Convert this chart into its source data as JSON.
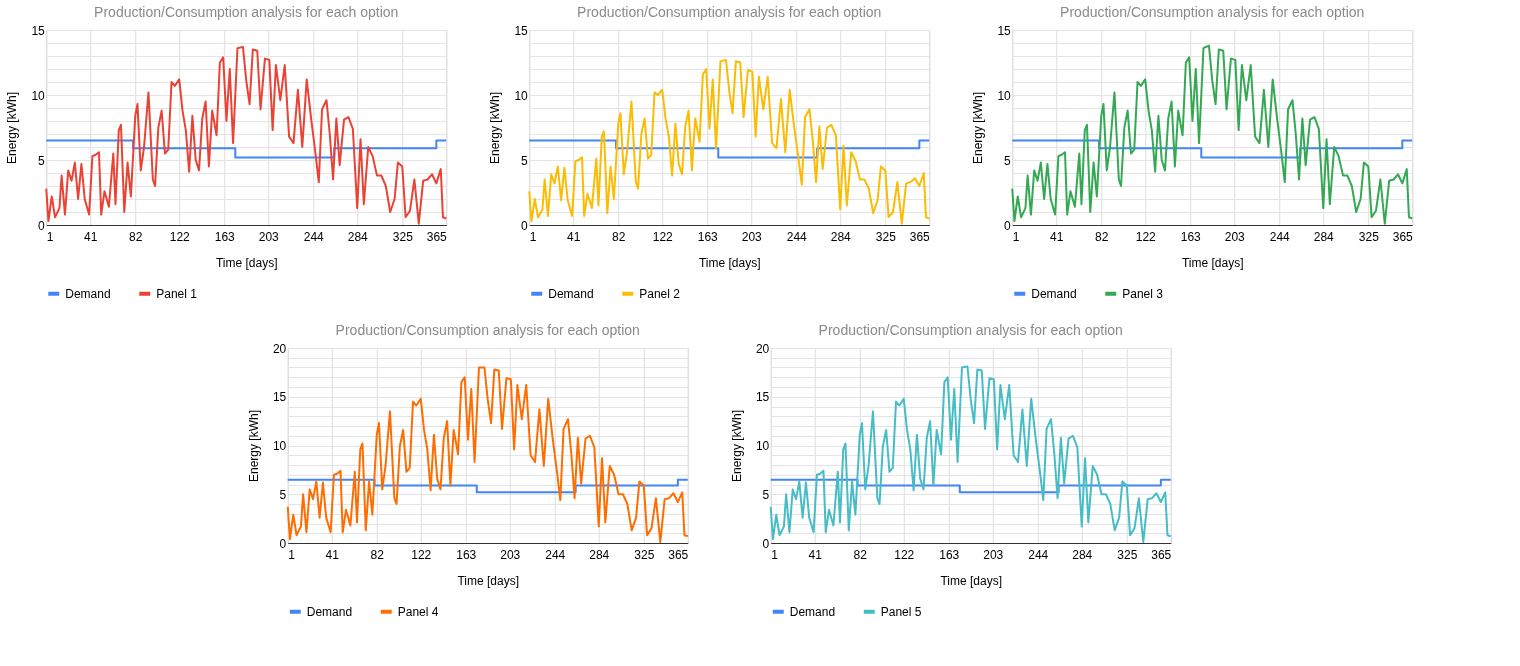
{
  "chart_data": [
    {
      "type": "line",
      "title": "Production/Consumption analysis for each option",
      "xlabel": "Time [days]",
      "ylabel": "Energy [kWh]",
      "xlim": [
        1,
        365
      ],
      "xticks": [
        1,
        41,
        82,
        122,
        163,
        203,
        244,
        284,
        325,
        365
      ],
      "ylim": [
        0,
        15
      ],
      "yticks": [
        0,
        {
          "value": 1,
          "label": null
        },
        {
          "value": 2,
          "label": null
        },
        {
          "value": 3,
          "label": null
        },
        {
          "value": 4,
          "label": null
        },
        5,
        {
          "value": 6,
          "label": null
        },
        {
          "value": 7,
          "label": null
        },
        {
          "value": 8,
          "label": null
        },
        {
          "value": 9,
          "label": null
        },
        10,
        {
          "value": 11,
          "label": null
        },
        {
          "value": 12,
          "label": null
        },
        {
          "value": 13,
          "label": null
        },
        {
          "value": 14,
          "label": null
        },
        15
      ],
      "grid": true,
      "legend": "bottom",
      "series": [
        {
          "name": "Demand",
          "color": "#4285f4",
          "x": [
            1,
            80,
            80,
            173,
            173,
            263,
            263,
            356,
            356,
            365
          ],
          "values": [
            6.5,
            6.5,
            5.9,
            5.9,
            5.2,
            5.2,
            5.9,
            5.9,
            6.5,
            6.5
          ]
        },
        {
          "name": "Panel 1",
          "color": "#ea4335",
          "x": [
            1,
            3,
            6,
            9,
            13,
            15,
            18,
            21,
            24,
            27,
            30,
            33,
            36,
            40,
            43,
            46,
            49,
            51,
            54,
            58,
            62,
            64,
            67,
            69,
            72,
            75,
            78,
            82,
            84,
            87,
            90,
            94,
            98,
            100,
            103,
            106,
            109,
            112,
            115,
            118,
            122,
            125,
            128,
            131,
            134,
            137,
            140,
            143,
            146,
            149,
            152,
            156,
            159,
            162,
            165,
            168,
            171,
            175,
            180,
            183,
            186,
            189,
            193,
            196,
            200,
            204,
            207,
            210,
            214,
            218,
            222,
            226,
            230,
            234,
            238,
            242,
            246,
            249,
            252,
            256,
            259,
            262,
            265,
            268,
            272,
            276,
            280,
            284,
            287,
            290,
            294,
            298,
            302,
            306,
            310,
            314,
            318,
            321,
            325,
            328,
            332,
            336,
            340,
            344,
            348,
            352,
            356,
            360,
            362,
            365
          ],
          "values": [
            2.8,
            0.3,
            2.2,
            0.6,
            1.3,
            3.8,
            0.8,
            4.2,
            3.4,
            4.8,
            2.0,
            4.7,
            2.0,
            0.8,
            5.3,
            5.4,
            5.6,
            0.8,
            2.6,
            1.4,
            5.5,
            1.6,
            7.3,
            7.7,
            1.0,
            4.8,
            2.2,
            8.4,
            9.3,
            4.2,
            6.0,
            10.2,
            3.5,
            3.0,
            7.5,
            8.8,
            5.5,
            5.8,
            11.0,
            10.7,
            11.2,
            8.8,
            7.3,
            4.1,
            8.4,
            5.0,
            4.2,
            8.2,
            9.5,
            4.5,
            8.8,
            6.9,
            12.5,
            12.9,
            8.0,
            12.0,
            6.3,
            13.6,
            13.7,
            11.1,
            9.3,
            13.5,
            13.4,
            8.9,
            12.8,
            12.7,
            7.3,
            12.3,
            9.6,
            12.3,
            6.8,
            6.3,
            10.4,
            6.0,
            11.2,
            8.2,
            5.5,
            3.3,
            8.9,
            9.6,
            7.0,
            3.5,
            8.2,
            4.6,
            8.1,
            8.3,
            7.4,
            1.3,
            6.6,
            1.6,
            6.0,
            5.3,
            3.8,
            3.8,
            3.0,
            1.0,
            2.0,
            4.8,
            4.5,
            0.6,
            1.1,
            3.5,
            0.1,
            3.4,
            3.5,
            3.9,
            3.2,
            4.3,
            0.6,
            0.5
          ]
        }
      ]
    },
    {
      "type": "line",
      "title": "Production/Consumption analysis for each option",
      "xlabel": "Time [days]",
      "ylabel": "Energy [kWh]",
      "xlim": [
        1,
        365
      ],
      "xticks": [
        1,
        41,
        82,
        122,
        163,
        203,
        244,
        284,
        325,
        365
      ],
      "ylim": [
        0,
        15
      ],
      "yticks": [
        0,
        {
          "value": 1,
          "label": null
        },
        {
          "value": 2,
          "label": null
        },
        {
          "value": 3,
          "label": null
        },
        {
          "value": 4,
          "label": null
        },
        5,
        {
          "value": 6,
          "label": null
        },
        {
          "value": 7,
          "label": null
        },
        {
          "value": 8,
          "label": null
        },
        {
          "value": 9,
          "label": null
        },
        10,
        {
          "value": 11,
          "label": null
        },
        {
          "value": 12,
          "label": null
        },
        {
          "value": 13,
          "label": null
        },
        {
          "value": 14,
          "label": null
        },
        15
      ],
      "grid": true,
      "legend": "bottom",
      "series": [
        {
          "name": "Demand",
          "color": "#4285f4",
          "x": [
            1,
            80,
            80,
            173,
            173,
            263,
            263,
            356,
            356,
            365
          ],
          "values": [
            6.5,
            6.5,
            5.9,
            5.9,
            5.2,
            5.2,
            5.9,
            5.9,
            6.5,
            6.5
          ]
        },
        {
          "name": "Panel 2",
          "color": "#fbbc04",
          "x": [
            1,
            3,
            6,
            9,
            13,
            15,
            18,
            21,
            24,
            27,
            30,
            33,
            36,
            40,
            43,
            46,
            49,
            51,
            54,
            58,
            62,
            64,
            67,
            69,
            72,
            75,
            78,
            82,
            84,
            87,
            90,
            94,
            98,
            100,
            103,
            106,
            109,
            112,
            115,
            118,
            122,
            125,
            128,
            131,
            134,
            137,
            140,
            143,
            146,
            149,
            152,
            156,
            159,
            162,
            165,
            168,
            171,
            175,
            180,
            183,
            186,
            189,
            193,
            196,
            200,
            204,
            207,
            210,
            214,
            218,
            222,
            226,
            230,
            234,
            238,
            242,
            246,
            249,
            252,
            256,
            259,
            262,
            265,
            268,
            272,
            276,
            280,
            284,
            287,
            290,
            294,
            298,
            302,
            306,
            310,
            314,
            318,
            321,
            325,
            328,
            332,
            336,
            340,
            344,
            348,
            352,
            356,
            360,
            362,
            365
          ],
          "values": [
            2.6,
            0.3,
            2.0,
            0.6,
            1.2,
            3.5,
            0.7,
            3.9,
            3.2,
            4.5,
            1.9,
            4.4,
            1.9,
            0.7,
            4.9,
            5.0,
            5.2,
            0.7,
            2.4,
            1.3,
            5.1,
            1.5,
            6.8,
            7.2,
            0.9,
            4.5,
            2.0,
            7.8,
            8.6,
            3.9,
            5.6,
            9.5,
            3.3,
            2.8,
            7.0,
            8.2,
            5.1,
            5.4,
            10.2,
            10.0,
            10.4,
            8.2,
            6.8,
            3.8,
            7.8,
            4.7,
            3.9,
            7.6,
            8.8,
            4.2,
            8.2,
            6.4,
            11.6,
            12.0,
            7.4,
            11.2,
            5.9,
            12.6,
            12.7,
            10.3,
            8.6,
            12.6,
            12.5,
            8.3,
            11.9,
            11.8,
            6.8,
            11.4,
            8.9,
            11.4,
            6.3,
            5.9,
            9.7,
            5.6,
            10.4,
            7.6,
            5.1,
            3.1,
            8.3,
            8.9,
            6.5,
            3.3,
            7.6,
            4.3,
            7.5,
            7.7,
            6.9,
            1.2,
            6.1,
            1.5,
            5.6,
            4.9,
            3.5,
            3.5,
            2.8,
            0.9,
            1.9,
            4.5,
            4.2,
            0.6,
            1.0,
            3.3,
            0.1,
            3.2,
            3.3,
            3.6,
            3.0,
            4.0,
            0.6,
            0.5
          ]
        }
      ]
    },
    {
      "type": "line",
      "title": "Production/Consumption analysis for each option",
      "xlabel": "Time [days]",
      "ylabel": "Energy [kWh]",
      "xlim": [
        1,
        365
      ],
      "xticks": [
        1,
        41,
        82,
        122,
        163,
        203,
        244,
        284,
        325,
        365
      ],
      "ylim": [
        0,
        15
      ],
      "yticks": [
        0,
        {
          "value": 1,
          "label": null
        },
        {
          "value": 2,
          "label": null
        },
        {
          "value": 3,
          "label": null
        },
        {
          "value": 4,
          "label": null
        },
        5,
        {
          "value": 6,
          "label": null
        },
        {
          "value": 7,
          "label": null
        },
        {
          "value": 8,
          "label": null
        },
        {
          "value": 9,
          "label": null
        },
        10,
        {
          "value": 11,
          "label": null
        },
        {
          "value": 12,
          "label": null
        },
        {
          "value": 13,
          "label": null
        },
        {
          "value": 14,
          "label": null
        },
        15
      ],
      "grid": true,
      "legend": "bottom",
      "series": [
        {
          "name": "Demand",
          "color": "#4285f4",
          "x": [
            1,
            80,
            80,
            173,
            173,
            263,
            263,
            356,
            356,
            365
          ],
          "values": [
            6.5,
            6.5,
            5.9,
            5.9,
            5.2,
            5.2,
            5.9,
            5.9,
            6.5,
            6.5
          ]
        },
        {
          "name": "Panel 3",
          "color": "#34a853",
          "x": [
            1,
            3,
            6,
            9,
            13,
            15,
            18,
            21,
            24,
            27,
            30,
            33,
            36,
            40,
            43,
            46,
            49,
            51,
            54,
            58,
            62,
            64,
            67,
            69,
            72,
            75,
            78,
            82,
            84,
            87,
            90,
            94,
            98,
            100,
            103,
            106,
            109,
            112,
            115,
            118,
            122,
            125,
            128,
            131,
            134,
            137,
            140,
            143,
            146,
            149,
            152,
            156,
            159,
            162,
            165,
            168,
            171,
            175,
            180,
            183,
            186,
            189,
            193,
            196,
            200,
            204,
            207,
            210,
            214,
            218,
            222,
            226,
            230,
            234,
            238,
            242,
            246,
            249,
            252,
            256,
            259,
            262,
            265,
            268,
            272,
            276,
            280,
            284,
            287,
            290,
            294,
            298,
            302,
            306,
            310,
            314,
            318,
            321,
            325,
            328,
            332,
            336,
            340,
            344,
            348,
            352,
            356,
            360,
            362,
            365
          ],
          "values": [
            2.8,
            0.3,
            2.2,
            0.6,
            1.3,
            3.8,
            0.8,
            4.2,
            3.4,
            4.8,
            2.0,
            4.7,
            2.0,
            0.8,
            5.3,
            5.4,
            5.6,
            0.8,
            2.6,
            1.4,
            5.5,
            1.6,
            7.3,
            7.7,
            1.0,
            4.8,
            2.2,
            8.4,
            9.3,
            4.2,
            6.0,
            10.2,
            3.5,
            3.0,
            7.5,
            8.8,
            5.5,
            5.8,
            11.0,
            10.7,
            11.2,
            8.8,
            7.3,
            4.1,
            8.4,
            5.0,
            4.2,
            8.2,
            9.5,
            4.5,
            8.8,
            6.9,
            12.5,
            12.9,
            8.0,
            12.0,
            6.3,
            13.6,
            13.8,
            11.1,
            9.3,
            13.5,
            13.4,
            8.9,
            12.8,
            12.7,
            7.3,
            12.3,
            9.6,
            12.3,
            6.8,
            6.3,
            10.4,
            6.0,
            11.2,
            8.2,
            5.5,
            3.3,
            8.9,
            9.6,
            7.0,
            3.5,
            8.2,
            4.6,
            8.1,
            8.3,
            7.4,
            1.3,
            6.6,
            1.6,
            6.0,
            5.3,
            3.8,
            3.8,
            3.0,
            1.0,
            2.0,
            4.8,
            4.5,
            0.6,
            1.1,
            3.5,
            0.1,
            3.4,
            3.5,
            3.9,
            3.2,
            4.3,
            0.6,
            0.5
          ]
        }
      ]
    },
    {
      "type": "line",
      "title": "Production/Consumption analysis for each option",
      "xlabel": "Time [days]",
      "ylabel": "Energy [kWh]",
      "xlim": [
        1,
        365
      ],
      "xticks": [
        1,
        41,
        82,
        122,
        163,
        203,
        244,
        284,
        325,
        365
      ],
      "ylim": [
        0,
        20
      ],
      "yticks": [
        0,
        {
          "value": 1,
          "label": null
        },
        {
          "value": 2,
          "label": null
        },
        {
          "value": 3,
          "label": null
        },
        {
          "value": 4,
          "label": null
        },
        5,
        {
          "value": 6,
          "label": null
        },
        {
          "value": 7,
          "label": null
        },
        {
          "value": 8,
          "label": null
        },
        {
          "value": 9,
          "label": null
        },
        10,
        {
          "value": 11,
          "label": null
        },
        {
          "value": 12,
          "label": null
        },
        {
          "value": 13,
          "label": null
        },
        {
          "value": 14,
          "label": null
        },
        15,
        {
          "value": 16,
          "label": null
        },
        {
          "value": 17,
          "label": null
        },
        {
          "value": 18,
          "label": null
        },
        {
          "value": 19,
          "label": null
        },
        20
      ],
      "grid": true,
      "legend": "bottom",
      "series": [
        {
          "name": "Demand",
          "color": "#4285f4",
          "x": [
            1,
            80,
            80,
            173,
            173,
            263,
            263,
            356,
            356,
            365
          ],
          "values": [
            6.5,
            6.5,
            5.9,
            5.9,
            5.2,
            5.2,
            5.9,
            5.9,
            6.5,
            6.5
          ]
        },
        {
          "name": "Panel 4",
          "color": "#ff6d01",
          "x": [
            1,
            3,
            6,
            9,
            13,
            15,
            18,
            21,
            24,
            27,
            30,
            33,
            36,
            40,
            43,
            46,
            49,
            51,
            54,
            58,
            62,
            64,
            67,
            69,
            72,
            75,
            78,
            82,
            84,
            87,
            90,
            94,
            98,
            100,
            103,
            106,
            109,
            112,
            115,
            118,
            122,
            125,
            128,
            131,
            134,
            137,
            140,
            143,
            146,
            149,
            152,
            156,
            159,
            162,
            165,
            168,
            171,
            175,
            180,
            183,
            186,
            189,
            193,
            196,
            200,
            204,
            207,
            210,
            214,
            218,
            222,
            226,
            230,
            234,
            238,
            242,
            246,
            249,
            252,
            256,
            259,
            262,
            265,
            268,
            272,
            276,
            280,
            284,
            287,
            290,
            294,
            298,
            302,
            306,
            310,
            314,
            318,
            321,
            325,
            328,
            332,
            336,
            340,
            344,
            348,
            352,
            356,
            360,
            362,
            365
          ],
          "values": [
            3.7,
            0.4,
            2.9,
            0.8,
            1.7,
            5.0,
            1.1,
            5.5,
            4.5,
            6.3,
            2.6,
            6.2,
            2.6,
            1.1,
            7.0,
            7.1,
            7.4,
            1.1,
            3.4,
            1.8,
            7.3,
            2.1,
            9.6,
            10.2,
            1.3,
            6.3,
            2.9,
            11.1,
            12.3,
            5.5,
            7.9,
            13.5,
            4.6,
            4.0,
            9.9,
            11.6,
            7.3,
            7.7,
            14.5,
            14.1,
            14.8,
            11.6,
            9.6,
            5.4,
            11.1,
            6.6,
            5.5,
            10.8,
            12.5,
            5.9,
            11.6,
            9.1,
            16.5,
            17.0,
            10.6,
            15.8,
            8.3,
            18.0,
            18.0,
            14.7,
            12.3,
            17.8,
            17.7,
            11.7,
            16.9,
            16.8,
            9.6,
            16.2,
            12.7,
            16.2,
            9.0,
            8.3,
            13.7,
            7.9,
            14.8,
            10.8,
            7.3,
            4.4,
            11.7,
            12.7,
            9.2,
            4.6,
            10.8,
            6.1,
            10.7,
            11.0,
            9.8,
            1.7,
            8.7,
            2.1,
            7.9,
            7.0,
            5.0,
            5.0,
            4.0,
            1.3,
            2.6,
            6.3,
            5.9,
            0.8,
            1.5,
            4.6,
            0.1,
            4.5,
            4.6,
            5.1,
            4.2,
            5.2,
            0.8,
            0.7
          ]
        }
      ]
    },
    {
      "type": "line",
      "title": "Production/Consumption analysis for each option",
      "xlabel": "Time [days]",
      "ylabel": "Energy [kWh]",
      "xlim": [
        1,
        365
      ],
      "xticks": [
        1,
        41,
        82,
        122,
        163,
        203,
        244,
        284,
        325,
        365
      ],
      "ylim": [
        0,
        20
      ],
      "yticks": [
        0,
        {
          "value": 1,
          "label": null
        },
        {
          "value": 2,
          "label": null
        },
        {
          "value": 3,
          "label": null
        },
        {
          "value": 4,
          "label": null
        },
        5,
        {
          "value": 6,
          "label": null
        },
        {
          "value": 7,
          "label": null
        },
        {
          "value": 8,
          "label": null
        },
        {
          "value": 9,
          "label": null
        },
        10,
        {
          "value": 11,
          "label": null
        },
        {
          "value": 12,
          "label": null
        },
        {
          "value": 13,
          "label": null
        },
        {
          "value": 14,
          "label": null
        },
        15,
        {
          "value": 16,
          "label": null
        },
        {
          "value": 17,
          "label": null
        },
        {
          "value": 18,
          "label": null
        },
        {
          "value": 19,
          "label": null
        },
        20
      ],
      "grid": true,
      "legend": "bottom",
      "series": [
        {
          "name": "Demand",
          "color": "#4285f4",
          "x": [
            1,
            80,
            80,
            173,
            173,
            263,
            263,
            356,
            356,
            365
          ],
          "values": [
            6.5,
            6.5,
            5.9,
            5.9,
            5.2,
            5.2,
            5.9,
            5.9,
            6.5,
            6.5
          ]
        },
        {
          "name": "Panel 5",
          "color": "#46bdc6",
          "x": [
            1,
            3,
            6,
            9,
            13,
            15,
            18,
            21,
            24,
            27,
            30,
            33,
            36,
            40,
            43,
            46,
            49,
            51,
            54,
            58,
            62,
            64,
            67,
            69,
            72,
            75,
            78,
            82,
            84,
            87,
            90,
            94,
            98,
            100,
            103,
            106,
            109,
            112,
            115,
            118,
            122,
            125,
            128,
            131,
            134,
            137,
            140,
            143,
            146,
            149,
            152,
            156,
            159,
            162,
            165,
            168,
            171,
            175,
            180,
            183,
            186,
            189,
            193,
            196,
            200,
            204,
            207,
            210,
            214,
            218,
            222,
            226,
            230,
            234,
            238,
            242,
            246,
            249,
            252,
            256,
            259,
            262,
            265,
            268,
            272,
            276,
            280,
            284,
            287,
            290,
            294,
            298,
            302,
            306,
            310,
            314,
            318,
            321,
            325,
            328,
            332,
            336,
            340,
            344,
            348,
            352,
            356,
            360,
            362,
            365
          ],
          "values": [
            3.7,
            0.4,
            2.9,
            0.8,
            1.7,
            5.0,
            1.1,
            5.5,
            4.5,
            6.3,
            2.6,
            6.2,
            2.6,
            1.1,
            7.0,
            7.1,
            7.4,
            1.1,
            3.4,
            1.8,
            7.3,
            2.1,
            9.6,
            10.2,
            1.3,
            6.3,
            2.9,
            11.1,
            12.3,
            5.5,
            7.9,
            13.5,
            4.6,
            4.0,
            9.9,
            11.6,
            7.3,
            7.7,
            14.5,
            14.1,
            14.8,
            11.6,
            9.6,
            5.4,
            11.1,
            6.6,
            5.5,
            10.8,
            12.5,
            5.9,
            11.6,
            9.1,
            16.5,
            17.0,
            10.6,
            15.8,
            8.3,
            18.0,
            18.1,
            14.7,
            12.3,
            17.8,
            17.7,
            11.7,
            16.9,
            16.8,
            9.6,
            16.2,
            12.7,
            16.2,
            9.0,
            8.3,
            13.7,
            7.9,
            14.8,
            10.8,
            7.3,
            4.4,
            11.7,
            12.7,
            9.2,
            4.6,
            10.8,
            6.1,
            10.7,
            11.0,
            9.8,
            1.7,
            8.7,
            2.1,
            7.9,
            7.0,
            5.0,
            5.0,
            4.0,
            1.3,
            2.6,
            6.3,
            5.9,
            0.8,
            1.5,
            4.6,
            0.1,
            4.5,
            4.6,
            5.1,
            4.2,
            5.2,
            0.8,
            0.7
          ]
        }
      ]
    }
  ]
}
